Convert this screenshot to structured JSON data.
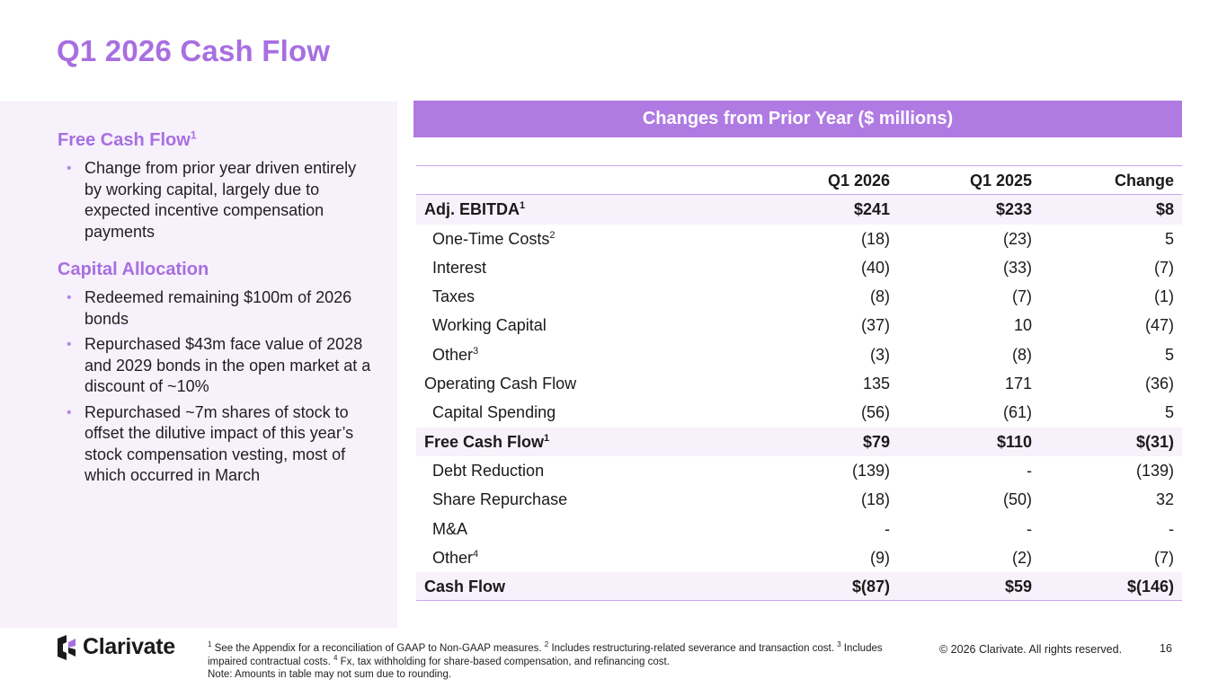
{
  "slide": {
    "title": "Q1 2026 Cash Flow",
    "page_number": "16",
    "accent_color": "#a86fe0",
    "header_bar_color": "#b07ae3",
    "panel_color": "#f7f1fc"
  },
  "left": {
    "free_cash_flow": {
      "heading": "Free Cash Flow",
      "heading_sup": "1",
      "bullets": [
        "Change from prior year driven entirely by working capital, largely due to expected incentive compensation payments"
      ]
    },
    "capital_allocation": {
      "heading": "Capital Allocation",
      "bullets": [
        "Redeemed remaining $100m of 2026 bonds",
        "Repurchased $43m face value of 2028 and 2029 bonds in the open market at a discount of ~10%",
        "Repurchased ~7m shares of stock to offset the dilutive impact of this year’s stock compensation vesting, most of which occurred in March"
      ]
    }
  },
  "table": {
    "banner": "Changes from Prior Year ($ millions)",
    "columns": [
      "Q1 2026",
      "Q1 2025",
      "Change"
    ],
    "rows": [
      {
        "label": "Adj. EBITDA",
        "sup": "1",
        "q1_2026": "$241",
        "q1_2025": "$233",
        "change": "$8"
      },
      {
        "label": "One-Time Costs",
        "sup": "2",
        "q1_2026": "(18)",
        "q1_2025": "(23)",
        "change": "5"
      },
      {
        "label": "Interest",
        "sup": "",
        "q1_2026": "(40)",
        "q1_2025": "(33)",
        "change": "(7)"
      },
      {
        "label": "Taxes",
        "sup": "",
        "q1_2026": "(8)",
        "q1_2025": "(7)",
        "change": "(1)"
      },
      {
        "label": "Working Capital",
        "sup": "",
        "q1_2026": "(37)",
        "q1_2025": "10",
        "change": "(47)"
      },
      {
        "label": "Other",
        "sup": "3",
        "q1_2026": "(3)",
        "q1_2025": "(8)",
        "change": "5"
      },
      {
        "label": "Operating Cash Flow",
        "sup": "",
        "q1_2026": "135",
        "q1_2025": "171",
        "change": "(36)"
      },
      {
        "label": "Capital Spending",
        "sup": "",
        "q1_2026": "(56)",
        "q1_2025": "(61)",
        "change": "5"
      },
      {
        "label": "Free Cash Flow",
        "sup": "1",
        "q1_2026": "$79",
        "q1_2025": "$110",
        "change": "$(31)"
      },
      {
        "label": "Debt Reduction",
        "sup": "",
        "q1_2026": "(139)",
        "q1_2025": "-",
        "change": "(139)"
      },
      {
        "label": "Share Repurchase",
        "sup": "",
        "q1_2026": "(18)",
        "q1_2025": "(50)",
        "change": "32"
      },
      {
        "label": "M&A",
        "sup": "",
        "q1_2026": "-",
        "q1_2025": "-",
        "change": "-"
      },
      {
        "label": "Other",
        "sup": "4",
        "q1_2026": "(9)",
        "q1_2025": "(2)",
        "change": "(7)"
      },
      {
        "label": "Cash Flow",
        "sup": "",
        "q1_2026": "$(87)",
        "q1_2025": "$59",
        "change": "$(146)"
      }
    ]
  },
  "footer": {
    "logo_text": "Clarivate",
    "footnote_1_sup": "1",
    "footnote_1": " See the Appendix for a reconciliation of GAAP to Non-GAAP measures.  ",
    "footnote_2_sup": "2",
    "footnote_2": " Includes restructuring-related severance and transaction cost.  ",
    "footnote_3_sup": "3",
    "footnote_3": " Includes impaired contractual costs.  ",
    "footnote_4_sup": "4",
    "footnote_4": " Fx, tax withholding for share-based compensation, and refinancing cost.",
    "note": "Note: Amounts in table may not sum due to rounding.",
    "copyright": "© 2026 Clarivate. All rights reserved."
  }
}
